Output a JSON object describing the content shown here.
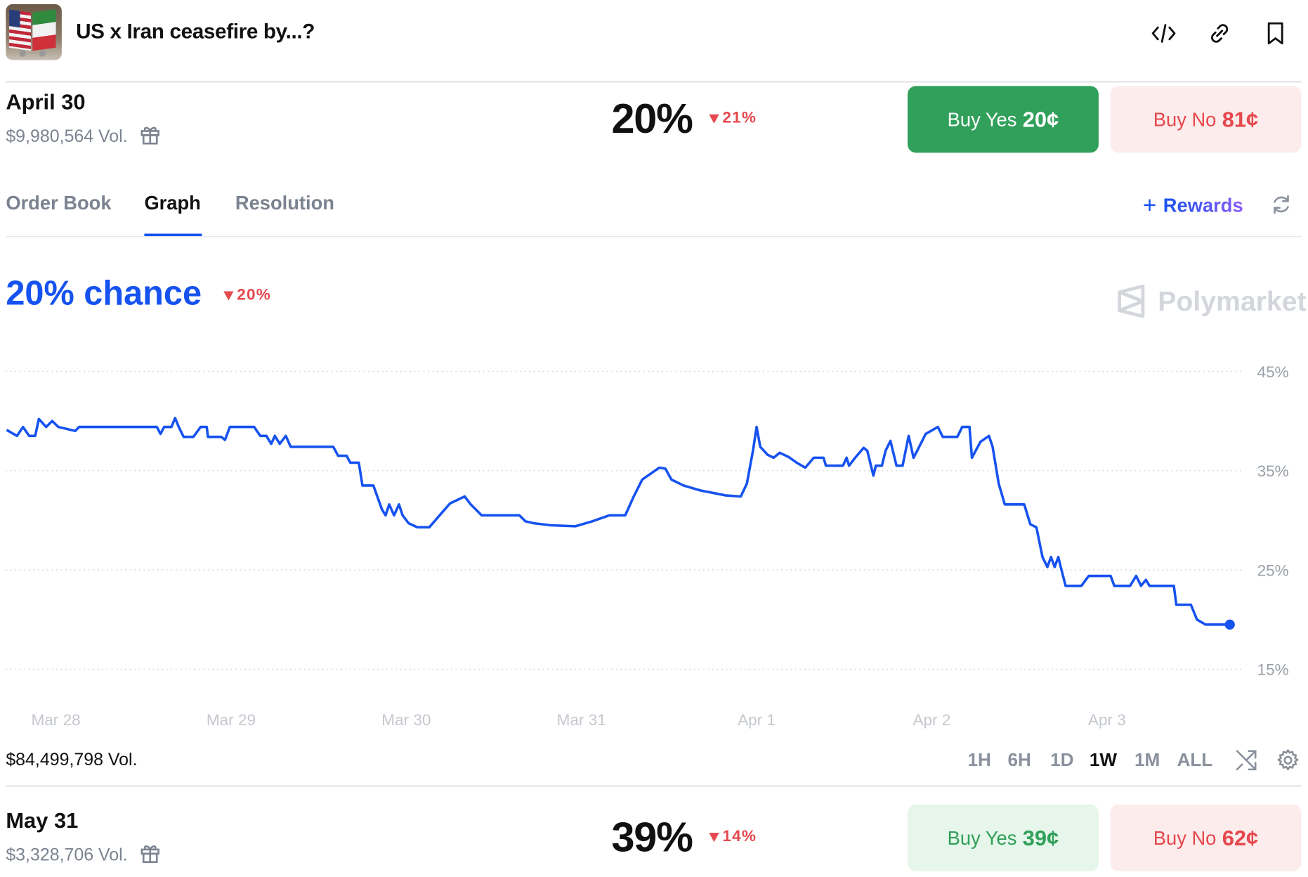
{
  "header": {
    "title": "US x Iran ceasefire by...?",
    "icons": [
      "code-icon",
      "link-icon",
      "bookmark-icon"
    ]
  },
  "markets": [
    {
      "date": "April 30",
      "volume": "$9,980,564 Vol.",
      "probability": "20%",
      "change": "21%",
      "change_direction": "down",
      "buy_yes": {
        "label": "Buy Yes",
        "price": "20¢"
      },
      "buy_no": {
        "label": "Buy No",
        "price": "81¢"
      },
      "expanded": true
    },
    {
      "date": "May 31",
      "volume": "$3,328,706 Vol.",
      "probability": "39%",
      "change": "14%",
      "change_direction": "down",
      "buy_yes": {
        "label": "Buy Yes",
        "price": "39¢"
      },
      "buy_no": {
        "label": "Buy No",
        "price": "62¢"
      },
      "expanded": false
    }
  ],
  "tabs": [
    {
      "label": "Order Book",
      "active": false
    },
    {
      "label": "Graph",
      "active": true
    },
    {
      "label": "Resolution",
      "active": false
    }
  ],
  "rewards_label": "Rewards",
  "graph": {
    "chance": "20% chance",
    "change": "20%",
    "watermark": "Polymarket",
    "total_volume": "$84,499,798 Vol.",
    "ranges": [
      {
        "label": "1H",
        "active": false
      },
      {
        "label": "6H",
        "active": false
      },
      {
        "label": "1D",
        "active": false
      },
      {
        "label": "1W",
        "active": true
      },
      {
        "label": "1M",
        "active": false
      },
      {
        "label": "ALL",
        "active": false
      }
    ]
  },
  "colors": {
    "accent": "#1652f0",
    "yes_green": "#31a05a",
    "no_red": "#e5484d",
    "no_bg": "#fdecec",
    "yes_light_bg": "#e6f6ea"
  },
  "chart_data": {
    "type": "line",
    "xlabel": "",
    "ylabel": "",
    "x_ticks": [
      "Mar 28",
      "Mar 29",
      "Mar 30",
      "Mar 31",
      "Apr 1",
      "Apr 2",
      "Apr 3"
    ],
    "y_ticks": [
      "15%",
      "25%",
      "35%",
      "45%"
    ],
    "ylim": [
      15,
      45
    ],
    "grid": "horizontal dotted",
    "series": [
      {
        "color": "#1652f0",
        "points": [
          [
            "Mar 27 17:15",
            39.1
          ],
          [
            "Mar 27 18:40",
            38.5
          ],
          [
            "Mar 27 19:30",
            39.4
          ],
          [
            "Mar 27 20:20",
            38.5
          ],
          [
            "Mar 27 21:10",
            38.5
          ],
          [
            "Mar 27 21:40",
            40.2
          ],
          [
            "Mar 27 22:40",
            39.4
          ],
          [
            "Mar 27 23:30",
            40.0
          ],
          [
            "Mar 28 00:20",
            39.4
          ],
          [
            "Mar 28 02:40",
            39.0
          ],
          [
            "Mar 28 03:10",
            39.4
          ],
          [
            "Mar 28 13:50",
            39.4
          ],
          [
            "Mar 28 14:20",
            38.7
          ],
          [
            "Mar 28 14:50",
            39.4
          ],
          [
            "Mar 28 15:50",
            39.4
          ],
          [
            "Mar 28 16:20",
            40.3
          ],
          [
            "Mar 28 16:50",
            39.4
          ],
          [
            "Mar 28 17:30",
            38.4
          ],
          [
            "Mar 28 18:50",
            38.4
          ],
          [
            "Mar 28 19:50",
            39.4
          ],
          [
            "Mar 28 20:40",
            39.4
          ],
          [
            "Mar 28 20:50",
            38.4
          ],
          [
            "Mar 28 22:40",
            38.4
          ],
          [
            "Mar 28 23:10",
            38.1
          ],
          [
            "Mar 28 23:50",
            39.4
          ],
          [
            "Mar 29 03:10",
            39.4
          ],
          [
            "Mar 29 04:00",
            38.5
          ],
          [
            "Mar 29 04:50",
            38.5
          ],
          [
            "Mar 29 05:30",
            37.7
          ],
          [
            "Mar 29 06:00",
            38.5
          ],
          [
            "Mar 29 06:40",
            37.7
          ],
          [
            "Mar 29 07:30",
            38.5
          ],
          [
            "Mar 29 08:10",
            37.4
          ],
          [
            "Mar 29 14:00",
            37.4
          ],
          [
            "Mar 29 14:40",
            36.5
          ],
          [
            "Mar 29 15:50",
            36.5
          ],
          [
            "Mar 29 16:20",
            35.8
          ],
          [
            "Mar 29 17:30",
            35.8
          ],
          [
            "Mar 29 18:00",
            33.5
          ],
          [
            "Mar 29 19:30",
            33.5
          ],
          [
            "Mar 29 20:40",
            31.1
          ],
          [
            "Mar 29 21:10",
            30.5
          ],
          [
            "Mar 29 21:40",
            31.6
          ],
          [
            "Mar 29 22:20",
            30.5
          ],
          [
            "Mar 29 23:00",
            31.6
          ],
          [
            "Mar 29 23:30",
            30.5
          ],
          [
            "Mar 30 00:20",
            29.7
          ],
          [
            "Mar 30 01:30",
            29.3
          ],
          [
            "Mar 30 03:10",
            29.3
          ],
          [
            "Mar 30 04:20",
            30.3
          ],
          [
            "Mar 30 06:00",
            31.7
          ],
          [
            "Mar 30 08:00",
            32.4
          ],
          [
            "Mar 30 08:50",
            31.6
          ],
          [
            "Mar 30 10:20",
            30.5
          ],
          [
            "Mar 30 15:30",
            30.5
          ],
          [
            "Mar 30 16:20",
            29.9
          ],
          [
            "Mar 30 17:30",
            29.7
          ],
          [
            "Mar 30 19:50",
            29.5
          ],
          [
            "Mar 30 23:10",
            29.4
          ],
          [
            "Mar 31 01:30",
            29.9
          ],
          [
            "Mar 31 03:50",
            30.5
          ],
          [
            "Mar 31 06:00",
            30.5
          ],
          [
            "Mar 31 07:10",
            32.4
          ],
          [
            "Mar 31 08:20",
            34.1
          ],
          [
            "Mar 31 10:40",
            35.3
          ],
          [
            "Mar 31 11:30",
            35.2
          ],
          [
            "Mar 31 12:20",
            34.1
          ],
          [
            "Mar 31 14:00",
            33.5
          ],
          [
            "Mar 31 16:20",
            33.0
          ],
          [
            "Mar 31 19:50",
            32.5
          ],
          [
            "Mar 31 21:50",
            32.4
          ],
          [
            "Mar 31 22:40",
            33.7
          ],
          [
            "Mar 31 23:30",
            37.0
          ],
          [
            "Apr 1 00:00",
            39.4
          ],
          [
            "Apr 1 00:30",
            37.4
          ],
          [
            "Apr 1 01:30",
            36.6
          ],
          [
            "Apr 1 02:20",
            36.3
          ],
          [
            "Apr 1 03:10",
            36.8
          ],
          [
            "Apr 1 04:20",
            36.4
          ],
          [
            "Apr 1 05:30",
            35.8
          ],
          [
            "Apr 1 06:40",
            35.3
          ],
          [
            "Apr 1 07:50",
            36.3
          ],
          [
            "Apr 1 09:10",
            36.3
          ],
          [
            "Apr 1 09:30",
            35.5
          ],
          [
            "Apr 1 11:50",
            35.5
          ],
          [
            "Apr 1 12:20",
            36.3
          ],
          [
            "Apr 1 12:40",
            35.5
          ],
          [
            "Apr 1 13:30",
            36.3
          ],
          [
            "Apr 1 14:40",
            37.3
          ],
          [
            "Apr 1 15:10",
            37.0
          ],
          [
            "Apr 1 16:00",
            34.5
          ],
          [
            "Apr 1 16:20",
            35.5
          ],
          [
            "Apr 1 17:10",
            35.5
          ],
          [
            "Apr 1 17:40",
            37.0
          ],
          [
            "Apr 1 18:20",
            38.0
          ],
          [
            "Apr 1 19:10",
            35.5
          ],
          [
            "Apr 1 20:00",
            35.5
          ],
          [
            "Apr 1 20:50",
            38.5
          ],
          [
            "Apr 1 21:30",
            36.3
          ],
          [
            "Apr 1 22:00",
            37.0
          ],
          [
            "Apr 1 23:10",
            38.7
          ],
          [
            "Apr 2 00:50",
            39.4
          ],
          [
            "Apr 2 01:30",
            38.4
          ],
          [
            "Apr 2 03:30",
            38.4
          ],
          [
            "Apr 2 04:10",
            39.4
          ],
          [
            "Apr 2 05:10",
            39.4
          ],
          [
            "Apr 2 05:30",
            36.3
          ],
          [
            "Apr 2 06:40",
            37.9
          ],
          [
            "Apr 2 07:50",
            38.5
          ],
          [
            "Apr 2 08:20",
            37.4
          ],
          [
            "Apr 2 09:10",
            33.7
          ],
          [
            "Apr 2 10:00",
            31.6
          ],
          [
            "Apr 2 12:40",
            31.6
          ],
          [
            "Apr 2 13:30",
            29.6
          ],
          [
            "Apr 2 14:20",
            29.3
          ],
          [
            "Apr 2 15:10",
            26.3
          ],
          [
            "Apr 2 15:50",
            25.3
          ],
          [
            "Apr 2 16:20",
            26.3
          ],
          [
            "Apr 2 16:50",
            25.3
          ],
          [
            "Apr 2 17:20",
            26.3
          ],
          [
            "Apr 2 17:40",
            25.3
          ],
          [
            "Apr 2 18:20",
            23.4
          ],
          [
            "Apr 2 20:30",
            23.4
          ],
          [
            "Apr 2 21:30",
            24.4
          ],
          [
            "Apr 3 00:30",
            24.4
          ],
          [
            "Apr 3 01:00",
            23.4
          ],
          [
            "Apr 3 03:10",
            23.4
          ],
          [
            "Apr 3 04:00",
            24.4
          ],
          [
            "Apr 3 04:40",
            23.4
          ],
          [
            "Apr 3 05:20",
            24.0
          ],
          [
            "Apr 3 05:50",
            23.4
          ],
          [
            "Apr 3 09:10",
            23.4
          ],
          [
            "Apr 3 09:30",
            21.5
          ],
          [
            "Apr 3 11:30",
            21.5
          ],
          [
            "Apr 3 12:20",
            20.0
          ],
          [
            "Apr 3 13:30",
            19.5
          ],
          [
            "Apr 3 16:50",
            19.5
          ]
        ]
      }
    ]
  }
}
